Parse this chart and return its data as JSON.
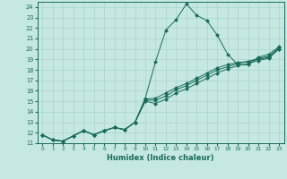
{
  "title": "",
  "xlabel": "Humidex (Indice chaleur)",
  "xlim": [
    -0.5,
    23.5
  ],
  "ylim": [
    11,
    24.5
  ],
  "xticks": [
    0,
    1,
    2,
    3,
    4,
    5,
    6,
    7,
    8,
    9,
    10,
    11,
    12,
    13,
    14,
    15,
    16,
    17,
    18,
    19,
    20,
    21,
    22,
    23
  ],
  "yticks": [
    11,
    12,
    13,
    14,
    15,
    16,
    17,
    18,
    19,
    20,
    21,
    22,
    23,
    24
  ],
  "bg_color": "#c5e8e2",
  "line_color": "#1a6b5a",
  "grid_color": "#aad4cc",
  "lines": [
    {
      "x": [
        0,
        1,
        2,
        3,
        4,
        5,
        6,
        7,
        8,
        9,
        10,
        11,
        12,
        13,
        14,
        15,
        16,
        17,
        18,
        19,
        20,
        21,
        22,
        23
      ],
      "y": [
        11.8,
        11.3,
        11.2,
        11.7,
        12.2,
        11.8,
        12.2,
        12.5,
        12.3,
        13.0,
        15.3,
        18.8,
        21.8,
        22.8,
        24.3,
        23.2,
        22.7,
        21.3,
        19.5,
        18.5,
        18.5,
        19.2,
        19.5,
        20.2
      ]
    },
    {
      "x": [
        0,
        1,
        2,
        3,
        4,
        5,
        6,
        7,
        8,
        9,
        10,
        11,
        12,
        13,
        14,
        15,
        16,
        17,
        18,
        19,
        20,
        21,
        22,
        23
      ],
      "y": [
        11.8,
        11.3,
        11.2,
        11.7,
        12.2,
        11.8,
        12.2,
        12.5,
        12.3,
        13.0,
        15.0,
        14.8,
        15.2,
        15.8,
        16.2,
        16.7,
        17.2,
        17.7,
        18.1,
        18.4,
        18.6,
        18.9,
        19.1,
        20.0
      ]
    },
    {
      "x": [
        0,
        1,
        2,
        3,
        4,
        5,
        6,
        7,
        8,
        9,
        10,
        11,
        12,
        13,
        14,
        15,
        16,
        17,
        18,
        19,
        20,
        21,
        22,
        23
      ],
      "y": [
        11.8,
        11.3,
        11.2,
        11.7,
        12.2,
        11.8,
        12.2,
        12.5,
        12.3,
        13.0,
        15.1,
        15.1,
        15.5,
        16.1,
        16.5,
        17.0,
        17.5,
        18.0,
        18.3,
        18.6,
        18.8,
        19.0,
        19.2,
        20.0
      ]
    },
    {
      "x": [
        0,
        1,
        2,
        3,
        4,
        5,
        6,
        7,
        8,
        9,
        10,
        11,
        12,
        13,
        14,
        15,
        16,
        17,
        18,
        19,
        20,
        21,
        22,
        23
      ],
      "y": [
        11.8,
        11.3,
        11.2,
        11.7,
        12.2,
        11.8,
        12.2,
        12.5,
        12.3,
        13.0,
        15.2,
        15.3,
        15.8,
        16.3,
        16.7,
        17.2,
        17.7,
        18.2,
        18.5,
        18.7,
        18.8,
        19.1,
        19.3,
        20.1
      ]
    }
  ]
}
